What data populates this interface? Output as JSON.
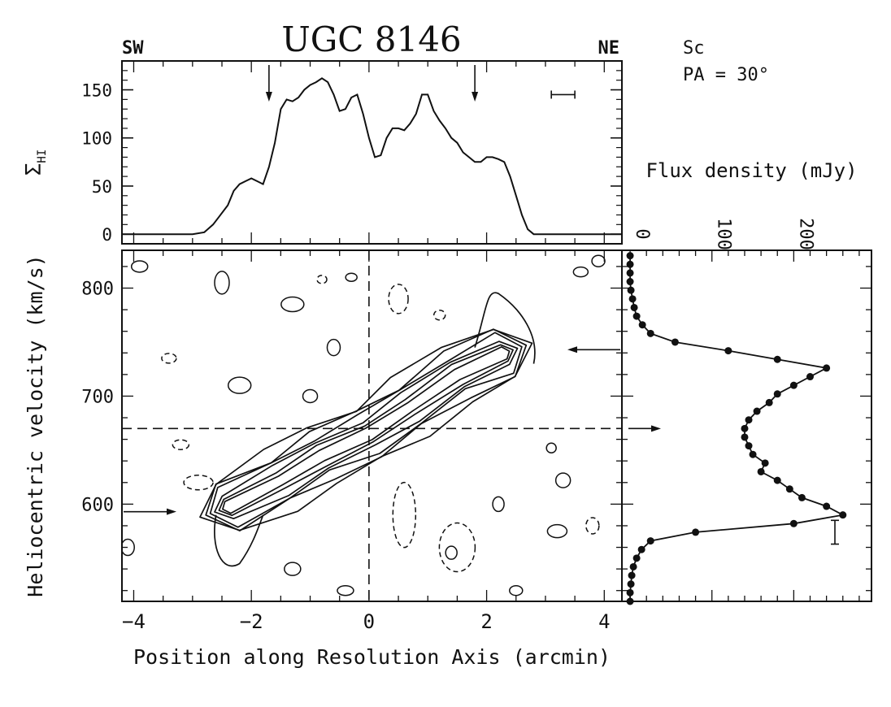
{
  "title": "UGC 8146",
  "left_label": "SW",
  "right_label": "NE",
  "galaxy_type": "Sc",
  "position_angle": "PA = 30°",
  "chart_data": [
    {
      "type": "line",
      "ylabel": "Σ_HI",
      "ylabel_main": "Σ",
      "ylabel_sub": "HI",
      "xlim": [
        -4.2,
        4.3
      ],
      "ylim": [
        -10,
        180
      ],
      "yticks": [
        0,
        50,
        100,
        150
      ],
      "ytick_labels": [
        "0",
        "50",
        "100",
        "150"
      ],
      "markers_x": [
        -1.7,
        1.8
      ],
      "x": [
        -4.2,
        -3.0,
        -2.8,
        -2.65,
        -2.55,
        -2.4,
        -2.3,
        -2.2,
        -2.1,
        -2.0,
        -1.9,
        -1.8,
        -1.7,
        -1.6,
        -1.5,
        -1.4,
        -1.3,
        -1.2,
        -1.1,
        -1.0,
        -0.9,
        -0.8,
        -0.7,
        -0.6,
        -0.5,
        -0.4,
        -0.3,
        -0.2,
        -0.1,
        0.0,
        0.1,
        0.2,
        0.3,
        0.4,
        0.5,
        0.6,
        0.7,
        0.8,
        0.9,
        1.0,
        1.1,
        1.2,
        1.3,
        1.4,
        1.5,
        1.6,
        1.7,
        1.8,
        1.9,
        2.0,
        2.1,
        2.2,
        2.3,
        2.4,
        2.5,
        2.6,
        2.7,
        2.8,
        3.0,
        4.3
      ],
      "values": [
        0,
        0,
        2,
        10,
        18,
        30,
        45,
        52,
        55,
        58,
        55,
        52,
        70,
        95,
        130,
        140,
        138,
        142,
        150,
        155,
        158,
        162,
        158,
        145,
        128,
        130,
        142,
        145,
        125,
        100,
        80,
        82,
        100,
        110,
        110,
        108,
        115,
        125,
        145,
        145,
        128,
        118,
        110,
        100,
        95,
        85,
        80,
        75,
        75,
        80,
        80,
        78,
        75,
        60,
        40,
        20,
        5,
        0,
        0,
        0
      ],
      "resolution_bar_x": [
        3.1,
        3.5
      ],
      "resolution_bar_y": 145
    },
    {
      "type": "heatmap",
      "subtype": "contour",
      "xlabel": "Position along Resolution Axis (arcmin)",
      "ylabel": "Heliocentric velocity (km/s)",
      "xlim": [
        -4.2,
        4.3
      ],
      "ylim": [
        510,
        835
      ],
      "xticks": [
        -4,
        -2,
        0,
        2,
        4
      ],
      "xtick_labels": [
        "−4",
        "−2",
        "0",
        "2",
        "4"
      ],
      "yticks": [
        600,
        700,
        800
      ],
      "ytick_labels": [
        "600",
        "700",
        "800"
      ],
      "systemic_velocity": 670,
      "center_position": 0,
      "edge_arrow_velocities": {
        "left": 593,
        "right": 743
      },
      "emission_axis": [
        [
          -2.4,
          597
        ],
        [
          -1.5,
          622
        ],
        [
          -0.8,
          645
        ],
        [
          0.0,
          665
        ],
        [
          0.7,
          690
        ],
        [
          1.5,
          720
        ],
        [
          2.3,
          740
        ]
      ],
      "contour_widths": [
        38,
        30,
        24,
        18,
        12,
        7
      ]
    },
    {
      "type": "line",
      "xlabel": "Flux density (mJy)",
      "xlim": [
        -10,
        295
      ],
      "xticks": [
        0,
        100,
        200
      ],
      "xtick_labels": [
        "0",
        "100",
        "200"
      ],
      "velocity": [
        510,
        518,
        526,
        534,
        542,
        550,
        558,
        566,
        574,
        582,
        590,
        598,
        606,
        614,
        622,
        630,
        638,
        646,
        654,
        662,
        670,
        678,
        686,
        694,
        702,
        710,
        718,
        726,
        734,
        742,
        750,
        758,
        766,
        774,
        782,
        790,
        798,
        806,
        814,
        822,
        830
      ],
      "values": [
        0,
        0,
        1,
        2,
        4,
        8,
        14,
        25,
        80,
        200,
        260,
        240,
        210,
        195,
        180,
        160,
        165,
        150,
        145,
        140,
        140,
        145,
        155,
        170,
        180,
        200,
        220,
        240,
        180,
        120,
        55,
        25,
        15,
        8,
        5,
        3,
        1,
        0,
        0,
        0,
        0
      ],
      "ylim": [
        510,
        835
      ],
      "systemic_velocity": 670
    }
  ]
}
